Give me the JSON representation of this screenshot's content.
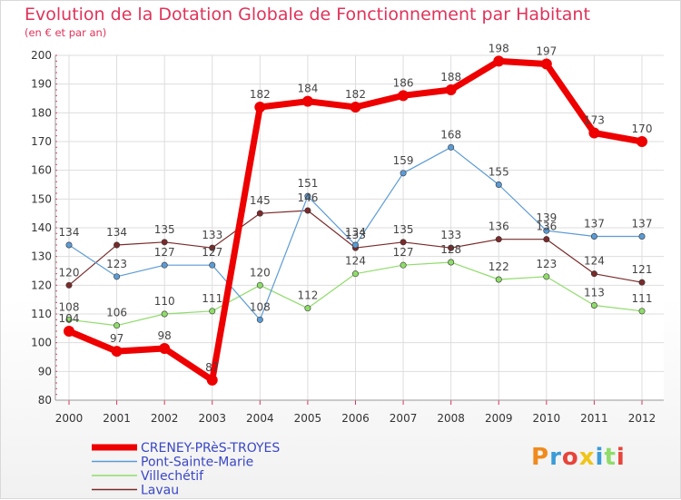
{
  "title": "Evolution de la Dotation Globale de Fonctionnement par Habitant",
  "subtitle": "(en € et par an)",
  "logo": "Proxiti",
  "colors": {
    "CRENEY-PRèS-TROYES": "#ee0000",
    "Pont-Sainte-Marie": "#5b9bd5",
    "Villechétif": "#8fdc6a",
    "Lavau": "#7a2a2a",
    "title": "#e0335a"
  },
  "chart_data": {
    "type": "line",
    "title": "Evolution de la Dotation Globale de Fonctionnement par Habitant",
    "subtitle": "(en € et par an)",
    "xlabel": "",
    "ylabel": "",
    "x": [
      "2000",
      "2001",
      "2002",
      "2003",
      "2004",
      "2005",
      "2006",
      "2007",
      "2008",
      "2009",
      "2010",
      "2011",
      "2012"
    ],
    "ylim": [
      80,
      200
    ],
    "yticks": [
      80,
      90,
      100,
      110,
      120,
      130,
      140,
      150,
      160,
      170,
      180,
      190,
      200
    ],
    "grid": true,
    "legend_position": "bottom-left",
    "series": [
      {
        "name": "CRENEY-PRèS-TROYES",
        "values": [
          104,
          97,
          98,
          87,
          182,
          184,
          182,
          186,
          188,
          198,
          197,
          173,
          170
        ]
      },
      {
        "name": "Pont-Sainte-Marie",
        "values": [
          134,
          123,
          127,
          127,
          108,
          151,
          134,
          159,
          168,
          155,
          139,
          137,
          137
        ]
      },
      {
        "name": "Villechétif",
        "values": [
          108,
          106,
          110,
          111,
          120,
          112,
          124,
          127,
          128,
          122,
          123,
          113,
          111
        ]
      },
      {
        "name": "Lavau",
        "values": [
          120,
          134,
          135,
          133,
          145,
          146,
          133,
          135,
          133,
          136,
          136,
          124,
          121
        ]
      }
    ]
  }
}
